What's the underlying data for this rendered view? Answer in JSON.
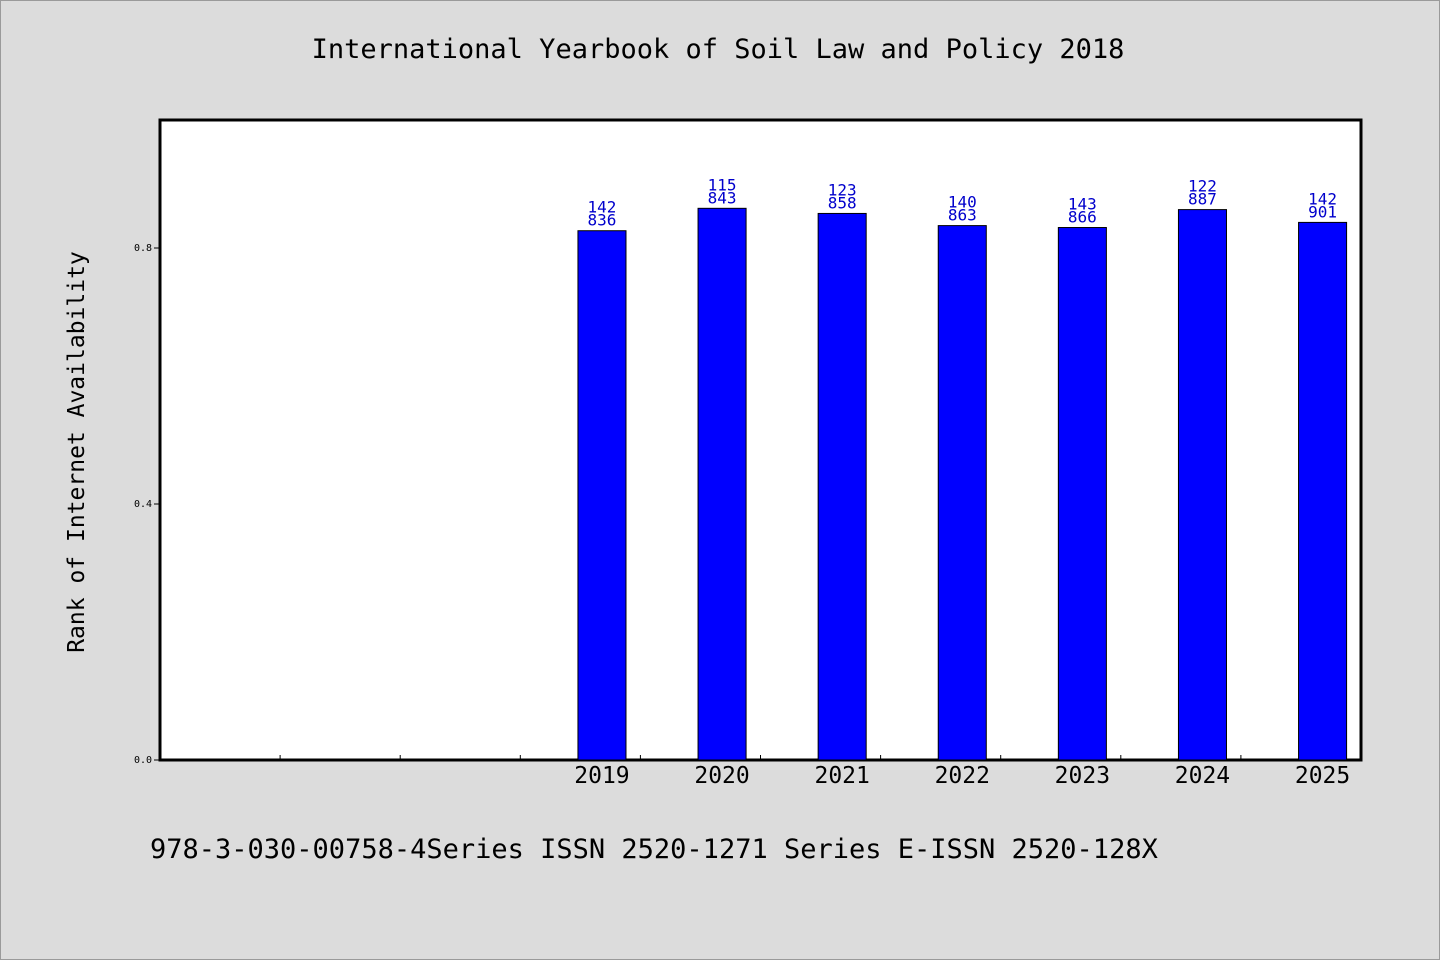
{
  "chart_data": {
    "type": "bar",
    "title": "International Yearbook of Soil Law and Policy 2018",
    "xlabel": "",
    "ylabel": "Rank of Internet Availability",
    "categories": [
      "2019",
      "2020",
      "2021",
      "2022",
      "2023",
      "2024",
      "2025"
    ],
    "series": [
      {
        "values": [
          0.827,
          0.862,
          0.854,
          0.835,
          0.832,
          0.86,
          0.84
        ],
        "labels": [
          [
            "142",
            "836"
          ],
          [
            "115",
            "843"
          ],
          [
            "123",
            "858"
          ],
          [
            "140",
            "863"
          ],
          [
            "143",
            "866"
          ],
          [
            "122",
            "887"
          ],
          [
            "142",
            "901"
          ]
        ]
      }
    ],
    "ylim": [
      0,
      1.0
    ],
    "yticks": [
      "0.0",
      "0.4",
      "0.8"
    ],
    "ytick_values": [
      0,
      0.4,
      0.8
    ],
    "empty_slots_before": 3,
    "grid": false,
    "colors": {
      "bar": "#0000ff",
      "bar_edge": "#000000",
      "data_label": "#0000cc",
      "background": "#dcdcdc",
      "plot_area": "#ffffff"
    }
  },
  "footer": "978-3-030-00758-4Series ISSN 2520-1271 Series E-ISSN 2520-128X"
}
